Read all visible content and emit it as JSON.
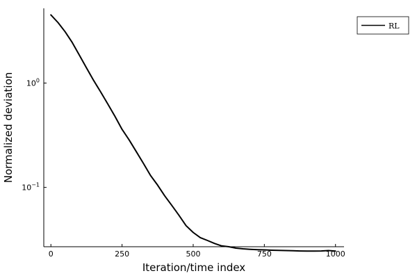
{
  "chart_data": {
    "type": "line",
    "title": "",
    "xlabel": "Iteration/time index",
    "ylabel": "Normalized deviation",
    "yscale": "log",
    "xlim": [
      -25,
      1030
    ],
    "ylim": [
      0.027,
      5.2
    ],
    "xticks": [
      0,
      250,
      500,
      750,
      1000
    ],
    "xtick_labels": [
      "0",
      "250",
      "500",
      "750",
      "1000"
    ],
    "yticks": [
      0.1,
      1
    ],
    "ytick_labels": [
      {
        "base": "10",
        "exp": "−1"
      },
      {
        "base": "10",
        "exp": "0"
      }
    ],
    "grid": false,
    "legend_position": "top-right",
    "series_color": "#000000",
    "series": [
      {
        "name": "RL",
        "x": [
          0,
          25,
          50,
          75,
          100,
          125,
          150,
          175,
          200,
          225,
          250,
          275,
          300,
          325,
          350,
          375,
          400,
          425,
          450,
          475,
          500,
          525,
          550,
          575,
          600,
          625,
          650,
          675,
          700,
          725,
          750,
          775,
          800,
          825,
          850,
          875,
          900,
          925,
          950,
          975,
          1000
        ],
        "y": [
          4.5,
          3.8,
          3.1,
          2.45,
          1.85,
          1.4,
          1.06,
          0.82,
          0.63,
          0.48,
          0.36,
          0.285,
          0.22,
          0.17,
          0.13,
          0.105,
          0.083,
          0.067,
          0.054,
          0.043,
          0.037,
          0.033,
          0.031,
          0.029,
          0.0275,
          0.027,
          0.0262,
          0.0258,
          0.0255,
          0.0253,
          0.0252,
          0.025,
          0.0249,
          0.0248,
          0.0247,
          0.0246,
          0.0245,
          0.0245,
          0.0246,
          0.0248,
          0.0245
        ]
      }
    ]
  }
}
